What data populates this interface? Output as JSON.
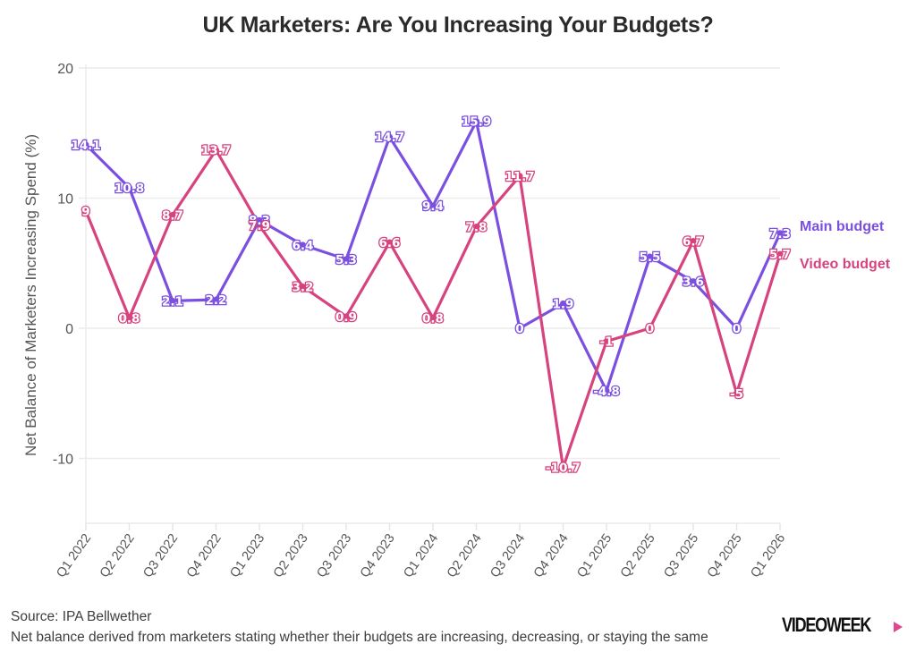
{
  "chart_data": {
    "type": "line",
    "title": "UK Marketers: Are You Increasing Your Budgets?",
    "xlabel": "",
    "ylabel": "Net Balance of Marketers Increasing Spend (%)",
    "ylim": [
      -15,
      20
    ],
    "yticks": [
      20,
      10,
      0,
      -10
    ],
    "ytick_labels": [
      "20",
      "10",
      "0",
      "-10"
    ],
    "grid": true,
    "legend_position": "right",
    "categories": [
      "Q1 2022",
      "Q2 2022",
      "Q3 2022",
      "Q4 2022",
      "Q1 2023",
      "Q2 2023",
      "Q3 2023",
      "Q4 2023",
      "Q1 2024",
      "Q2 2024",
      "Q3 2024",
      "Q4 2024",
      "Q1 2025",
      "Q2 2025",
      "Q3 2025",
      "Q4 2025",
      "Q1 2026"
    ],
    "series": [
      {
        "name": "Main budget",
        "color": "#7b4fe0",
        "labelColor": "#7b4fe0",
        "values": [
          14.1,
          10.8,
          2.1,
          2.2,
          8.3,
          6.4,
          5.3,
          14.7,
          9.4,
          15.9,
          0,
          1.9,
          -4.8,
          5.5,
          3.6,
          0,
          7.3
        ]
      },
      {
        "name": "Video budget",
        "color": "#d6437f",
        "labelColor": "#d6437f",
        "values": [
          9,
          0.8,
          8.7,
          13.7,
          7.9,
          3.2,
          0.9,
          6.6,
          0.8,
          7.8,
          11.7,
          -10.7,
          -1,
          0,
          6.7,
          -5,
          5.7
        ]
      }
    ]
  },
  "footer": {
    "source": "Source: IPA Bellwether",
    "note": "Net balance derived from marketers stating whether their budgets are increasing, decreasing, or staying the same"
  },
  "logo": {
    "text": "VIDEOWEEK"
  }
}
